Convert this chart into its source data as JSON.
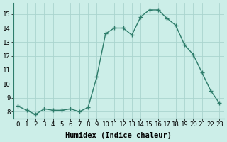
{
  "x": [
    0,
    1,
    2,
    3,
    4,
    5,
    6,
    7,
    8,
    9,
    10,
    11,
    12,
    13,
    14,
    15,
    16,
    17,
    18,
    19,
    20,
    21,
    22,
    23
  ],
  "y": [
    8.4,
    8.1,
    7.8,
    8.2,
    8.1,
    8.1,
    8.2,
    8.0,
    8.3,
    10.5,
    13.6,
    14.0,
    14.0,
    13.5,
    14.8,
    15.3,
    15.3,
    14.7,
    14.2,
    12.8,
    12.1,
    10.8,
    9.5,
    8.6
  ],
  "line_color": "#2e7d6b",
  "marker": "+",
  "markersize": 4,
  "linewidth": 1.0,
  "bg_color": "#cceee8",
  "grid_color": "#aad4ce",
  "xlabel": "Humidex (Indice chaleur)",
  "xlabel_fontsize": 7.5,
  "tick_fontsize": 6.5,
  "xlim": [
    -0.5,
    23.5
  ],
  "ylim": [
    7.5,
    15.8
  ],
  "yticks": [
    8,
    9,
    10,
    11,
    12,
    13,
    14,
    15
  ],
  "xticks": [
    0,
    1,
    2,
    3,
    4,
    5,
    6,
    7,
    8,
    9,
    10,
    11,
    12,
    13,
    14,
    15,
    16,
    17,
    18,
    19,
    20,
    21,
    22,
    23
  ],
  "xtick_labels": [
    "0",
    "1",
    "2",
    "3",
    "4",
    "5",
    "6",
    "7",
    "8",
    "9",
    "10",
    "11",
    "12",
    "13",
    "14",
    "15",
    "16",
    "17",
    "18",
    "19",
    "20",
    "21",
    "22",
    "23"
  ]
}
